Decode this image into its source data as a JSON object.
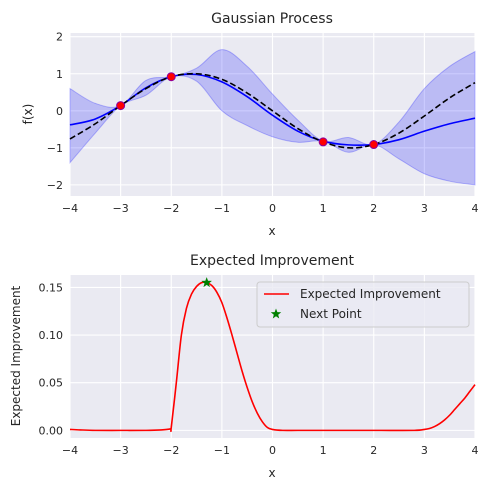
{
  "chart_data": [
    {
      "type": "line",
      "title": "Gaussian Process",
      "xlabel": "x",
      "ylabel": "f(x)",
      "xlim": [
        -4,
        4
      ],
      "ylim": [
        -2.3,
        2.1
      ],
      "xticks": [
        -4,
        -3,
        -2,
        -1,
        0,
        1,
        2,
        3,
        4
      ],
      "yticks": [
        -2,
        -1,
        0,
        1,
        2
      ],
      "xtick_labels": [
        "−4",
        "−3",
        "−2",
        "−1",
        "0",
        "1",
        "2",
        "3",
        "4"
      ],
      "ytick_labels": [
        "−2",
        "−1",
        "0",
        "1",
        "2"
      ],
      "grid": true,
      "background": "#EAEAF2",
      "series": [
        {
          "style": "solid",
          "color": "#0000FF",
          "x": [
            -4.0,
            -3.5,
            -3.0,
            -2.5,
            -2.0,
            -1.5,
            -1.0,
            -0.5,
            0.0,
            0.5,
            1.0,
            1.5,
            2.0,
            2.5,
            3.0,
            3.5,
            4.0
          ],
          "y": [
            -0.38,
            -0.22,
            0.14,
            0.62,
            0.92,
            0.98,
            0.78,
            0.38,
            -0.12,
            -0.55,
            -0.82,
            -0.92,
            -0.91,
            -0.78,
            -0.55,
            -0.35,
            -0.2
          ]
        },
        {
          "style": "dashed",
          "color": "#000000",
          "x": [
            -4.0,
            -3.5,
            -3.0,
            -2.5,
            -2.0,
            -1.5,
            -1.0,
            -0.5,
            0.0,
            0.5,
            1.0,
            1.5,
            2.0,
            2.5,
            3.0,
            3.5,
            4.0
          ],
          "y": [
            -0.76,
            -0.35,
            0.14,
            0.6,
            0.92,
            1.0,
            0.85,
            0.48,
            0.0,
            -0.48,
            -0.84,
            -1.0,
            -0.91,
            -0.6,
            -0.14,
            0.35,
            0.76
          ]
        }
      ],
      "band": {
        "color": "#0000FF",
        "x": [
          -4.0,
          -3.5,
          -3.0,
          -2.5,
          -2.0,
          -1.5,
          -1.0,
          -0.5,
          0.0,
          0.5,
          1.0,
          1.5,
          2.0,
          2.5,
          3.0,
          3.5,
          4.0
        ],
        "lower": [
          -1.4,
          -0.6,
          0.14,
          0.42,
          0.92,
          0.8,
          0.0,
          -0.4,
          -0.7,
          -0.85,
          -0.82,
          -1.12,
          -0.91,
          -1.3,
          -1.7,
          -1.9,
          -2.0
        ],
        "upper": [
          0.6,
          0.2,
          0.14,
          0.82,
          0.92,
          1.15,
          1.65,
          1.2,
          0.45,
          -0.25,
          -0.82,
          -0.72,
          -0.91,
          -0.3,
          0.6,
          1.2,
          1.6
        ]
      },
      "points": {
        "color": "#FF0000",
        "edge": "#8B00A0",
        "x": [
          -3.0,
          -2.0,
          1.0,
          2.0
        ],
        "y": [
          0.14,
          0.92,
          -0.84,
          -0.91
        ]
      }
    },
    {
      "type": "line",
      "title": "Expected Improvement",
      "xlabel": "x",
      "ylabel": "Expected Improvement",
      "xlim": [
        -4,
        4
      ],
      "ylim": [
        -0.008,
        0.163
      ],
      "xticks": [
        -4,
        -3,
        -2,
        -1,
        0,
        1,
        2,
        3,
        4
      ],
      "yticks": [
        0.0,
        0.05,
        0.1,
        0.15
      ],
      "xtick_labels": [
        "−4",
        "−3",
        "−2",
        "−1",
        "0",
        "1",
        "2",
        "3",
        "4"
      ],
      "ytick_labels": [
        "0.00",
        "0.05",
        "0.10",
        "0.15"
      ],
      "grid": true,
      "background": "#EAEAF2",
      "series": [
        {
          "name": "Expected Improvement",
          "color": "#FF0000",
          "x": [
            -4.0,
            -3.8,
            -3.5,
            -3.0,
            -2.5,
            -2.2,
            -2.02,
            -2.0,
            -1.9,
            -1.8,
            -1.7,
            -1.6,
            -1.5,
            -1.4,
            -1.3,
            -1.2,
            -1.1,
            -1.0,
            -0.9,
            -0.8,
            -0.7,
            -0.6,
            -0.5,
            -0.4,
            -0.3,
            -0.2,
            -0.1,
            0.0,
            0.2,
            0.5,
            1.0,
            2.0,
            2.8,
            3.0,
            3.1,
            3.2,
            3.3,
            3.4,
            3.5,
            3.6,
            3.7,
            3.8,
            3.9,
            4.0
          ],
          "y": [
            0.001,
            0.0005,
            0.0,
            0.0,
            0.0,
            0.0005,
            0.0015,
            0.003,
            0.05,
            0.1,
            0.128,
            0.143,
            0.151,
            0.155,
            0.155,
            0.152,
            0.145,
            0.134,
            0.118,
            0.1,
            0.081,
            0.062,
            0.045,
            0.03,
            0.018,
            0.009,
            0.003,
            0.001,
            0.0,
            0.0,
            0.0,
            0.0,
            0.0,
            0.001,
            0.002,
            0.004,
            0.007,
            0.011,
            0.016,
            0.022,
            0.028,
            0.034,
            0.041,
            0.048
          ]
        }
      ],
      "next_point": {
        "name": "Next Point",
        "color": "#008000",
        "x": -1.3,
        "y": 0.155
      },
      "legend": {
        "placement": "upper right",
        "entries": [
          "Expected Improvement",
          "Next Point"
        ]
      }
    }
  ]
}
